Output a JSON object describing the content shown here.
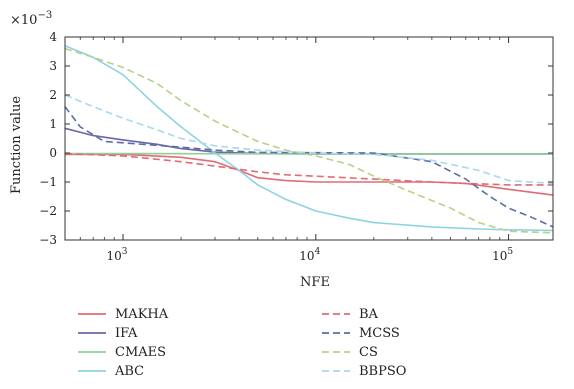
{
  "chart_data": {
    "type": "line",
    "title": "",
    "xlabel": "NFE",
    "ylabel": "Function value",
    "y_multiplier_label": "×10",
    "y_multiplier_exponent": "−3",
    "x_scale": "log",
    "xlim": [
      500,
      170000
    ],
    "ylim": [
      -3,
      4
    ],
    "x_ticks": [
      {
        "value": 1000,
        "base": "10",
        "exp": "3"
      },
      {
        "value": 10000,
        "base": "10",
        "exp": "4"
      },
      {
        "value": 100000,
        "base": "10",
        "exp": "5"
      }
    ],
    "y_ticks": [
      {
        "value": 4,
        "label": "4"
      },
      {
        "value": 3,
        "label": "3"
      },
      {
        "value": 2,
        "label": "2"
      },
      {
        "value": 1,
        "label": "1"
      },
      {
        "value": 0,
        "label": "0"
      },
      {
        "value": -1,
        "label": "−1"
      },
      {
        "value": -2,
        "label": "−2"
      },
      {
        "value": -3,
        "label": "−3"
      }
    ],
    "grid": false,
    "legend_position": "bottom",
    "series": [
      {
        "name": "MAKHA",
        "color": "#e06c75",
        "dash": "solid",
        "points": [
          [
            500,
            -0.05
          ],
          [
            1000,
            -0.05
          ],
          [
            2000,
            -0.15
          ],
          [
            3000,
            -0.3
          ],
          [
            4000,
            -0.6
          ],
          [
            5000,
            -0.85
          ],
          [
            7000,
            -0.95
          ],
          [
            10000,
            -1.0
          ],
          [
            20000,
            -1.0
          ],
          [
            40000,
            -1.0
          ],
          [
            60000,
            -1.05
          ],
          [
            100000,
            -1.25
          ],
          [
            170000,
            -1.45
          ]
        ]
      },
      {
        "name": "IFA",
        "color": "#6f66a6",
        "dash": "solid",
        "points": [
          [
            500,
            0.85
          ],
          [
            700,
            0.6
          ],
          [
            1000,
            0.45
          ],
          [
            1500,
            0.3
          ],
          [
            2000,
            0.15
          ],
          [
            3000,
            0.03
          ],
          [
            5000,
            -0.02
          ],
          [
            10000,
            -0.03
          ],
          [
            170000,
            -0.03
          ]
        ]
      },
      {
        "name": "CMAES",
        "color": "#8fcf9a",
        "dash": "solid",
        "points": [
          [
            500,
            -0.02
          ],
          [
            1000,
            -0.02
          ],
          [
            10000,
            -0.03
          ],
          [
            100000,
            -0.03
          ],
          [
            170000,
            -0.03
          ]
        ]
      },
      {
        "name": "ABC",
        "color": "#8ed3e3",
        "dash": "solid",
        "points": [
          [
            500,
            3.7
          ],
          [
            700,
            3.3
          ],
          [
            1000,
            2.7
          ],
          [
            1500,
            1.6
          ],
          [
            2000,
            0.9
          ],
          [
            3000,
            0.0
          ],
          [
            4000,
            -0.6
          ],
          [
            5000,
            -1.1
          ],
          [
            7000,
            -1.6
          ],
          [
            10000,
            -2.0
          ],
          [
            15000,
            -2.25
          ],
          [
            20000,
            -2.4
          ],
          [
            40000,
            -2.55
          ],
          [
            70000,
            -2.62
          ],
          [
            100000,
            -2.65
          ],
          [
            170000,
            -2.67
          ]
        ]
      },
      {
        "name": "BA",
        "color": "#e06c75",
        "dash": "dashed",
        "points": [
          [
            500,
            -0.02
          ],
          [
            1000,
            -0.1
          ],
          [
            2000,
            -0.3
          ],
          [
            3000,
            -0.45
          ],
          [
            5000,
            -0.65
          ],
          [
            7000,
            -0.75
          ],
          [
            10000,
            -0.8
          ],
          [
            20000,
            -0.9
          ],
          [
            40000,
            -1.0
          ],
          [
            60000,
            -1.05
          ],
          [
            100000,
            -1.1
          ],
          [
            170000,
            -1.1
          ]
        ]
      },
      {
        "name": "MCSS",
        "color": "#5b6ea8",
        "dash": "dashed",
        "points": [
          [
            500,
            1.6
          ],
          [
            600,
            0.9
          ],
          [
            800,
            0.4
          ],
          [
            1000,
            0.35
          ],
          [
            2000,
            0.2
          ],
          [
            3000,
            0.1
          ],
          [
            5000,
            0.02
          ],
          [
            20000,
            0.0
          ],
          [
            40000,
            -0.3
          ],
          [
            60000,
            -0.9
          ],
          [
            80000,
            -1.5
          ],
          [
            100000,
            -1.9
          ],
          [
            130000,
            -2.2
          ],
          [
            170000,
            -2.55
          ]
        ]
      },
      {
        "name": "CS",
        "color": "#b5d28a",
        "dash": "dashed",
        "points": [
          [
            500,
            3.6
          ],
          [
            700,
            3.3
          ],
          [
            1000,
            2.95
          ],
          [
            1500,
            2.4
          ],
          [
            2000,
            1.8
          ],
          [
            3000,
            1.1
          ],
          [
            4000,
            0.7
          ],
          [
            5000,
            0.4
          ],
          [
            7000,
            0.1
          ],
          [
            10000,
            -0.1
          ],
          [
            15000,
            -0.4
          ],
          [
            20000,
            -0.8
          ],
          [
            30000,
            -1.3
          ],
          [
            50000,
            -1.9
          ],
          [
            70000,
            -2.4
          ],
          [
            100000,
            -2.7
          ],
          [
            170000,
            -2.75
          ]
        ]
      },
      {
        "name": "BBPSO",
        "color": "#a8d8ea",
        "dash": "dashed",
        "points": [
          [
            500,
            2.0
          ],
          [
            700,
            1.6
          ],
          [
            1000,
            1.2
          ],
          [
            1500,
            0.8
          ],
          [
            2000,
            0.5
          ],
          [
            3000,
            0.25
          ],
          [
            5000,
            0.1
          ],
          [
            10000,
            0.0
          ],
          [
            20000,
            -0.05
          ],
          [
            40000,
            -0.25
          ],
          [
            70000,
            -0.6
          ],
          [
            100000,
            -0.95
          ],
          [
            170000,
            -1.05
          ]
        ]
      }
    ]
  }
}
